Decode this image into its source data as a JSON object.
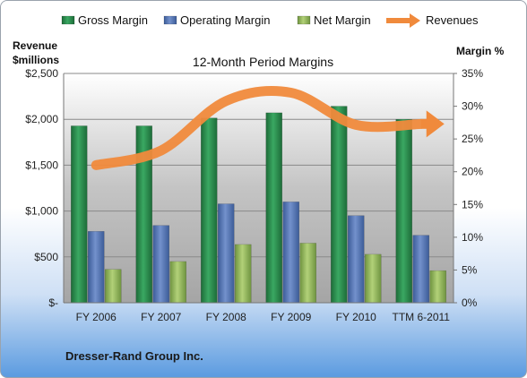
{
  "chart_data": {
    "type": "bar",
    "title": "12-Month Period Margins",
    "ylabel_left": "Revenue $millions",
    "ylabel_right": "Margin %",
    "company": "Dresser-Rand Group Inc.",
    "categories": [
      "FY 2006",
      "FY 2007",
      "FY 2008",
      "FY 2009",
      "FY 2010",
      "TTM 6-2011"
    ],
    "left_axis": {
      "ylim": [
        0,
        2500
      ],
      "ticks": [
        "$-",
        "$500",
        "$1,000",
        "$1,500",
        "$2,000",
        "$2,500"
      ],
      "tick_values": [
        0,
        500,
        1000,
        1500,
        2000,
        2500
      ]
    },
    "right_axis": {
      "ylim": [
        0,
        35
      ],
      "ticks": [
        "0%",
        "5%",
        "10%",
        "15%",
        "20%",
        "25%",
        "30%",
        "35%"
      ],
      "tick_values": [
        0,
        5,
        10,
        15,
        20,
        25,
        30,
        35
      ]
    },
    "series": [
      {
        "name": "Gross Margin",
        "kind": "bar",
        "axis": "right",
        "color": "#2e8b4e",
        "values": [
          27,
          27,
          28.2,
          29,
          30,
          28
        ]
      },
      {
        "name": "Operating Margin",
        "kind": "bar",
        "axis": "right",
        "color": "#5577b8",
        "values": [
          10.9,
          11.8,
          15.1,
          15.4,
          13.3,
          10.3
        ]
      },
      {
        "name": "Net Margin",
        "kind": "bar",
        "axis": "right",
        "color": "#94b85a",
        "values": [
          5.1,
          6.3,
          8.9,
          9.1,
          7.4,
          4.9
        ]
      },
      {
        "name": "Revenues",
        "kind": "line",
        "axis": "left",
        "color": "#f08a3c",
        "values": [
          1500,
          1660,
          2200,
          2290,
          1940,
          1950
        ]
      }
    ],
    "grid": true,
    "legend": "top"
  }
}
